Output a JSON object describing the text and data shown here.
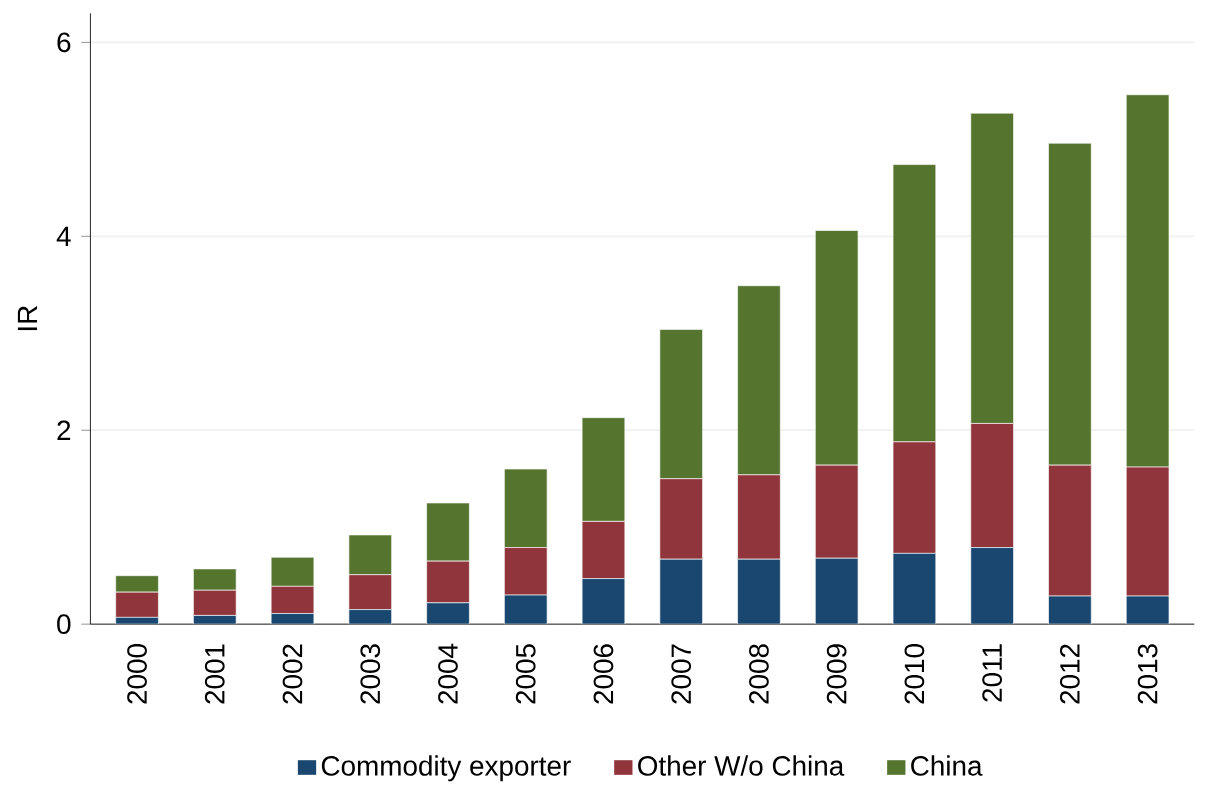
{
  "chart_data": {
    "type": "bar",
    "stacked": true,
    "ylabel": "IR",
    "categories": [
      "2000",
      "2001",
      "2002",
      "2003",
      "2004",
      "2005",
      "2006",
      "2007",
      "2008",
      "2009",
      "2010",
      "2011",
      "2012",
      "2013"
    ],
    "series": [
      {
        "name": "Commodity exporter",
        "color": "#1a476f",
        "values": [
          0.07,
          0.09,
          0.11,
          0.15,
          0.22,
          0.3,
          0.47,
          0.67,
          0.67,
          0.68,
          0.73,
          0.79,
          0.29,
          0.29
        ]
      },
      {
        "name": "Other W/o China",
        "color": "#90353b",
        "values": [
          0.26,
          0.26,
          0.28,
          0.36,
          0.43,
          0.49,
          0.59,
          0.83,
          0.87,
          0.96,
          1.15,
          1.28,
          1.35,
          1.33
        ]
      },
      {
        "name": "China",
        "color": "#55752f",
        "values": [
          0.17,
          0.22,
          0.3,
          0.41,
          0.6,
          0.81,
          1.07,
          1.54,
          1.95,
          2.42,
          2.86,
          3.2,
          3.32,
          3.84
        ]
      }
    ],
    "ylim": [
      0,
      6.3
    ],
    "yticks": [
      0,
      2,
      4,
      6
    ],
    "grid": "y",
    "legend": "bottom"
  }
}
